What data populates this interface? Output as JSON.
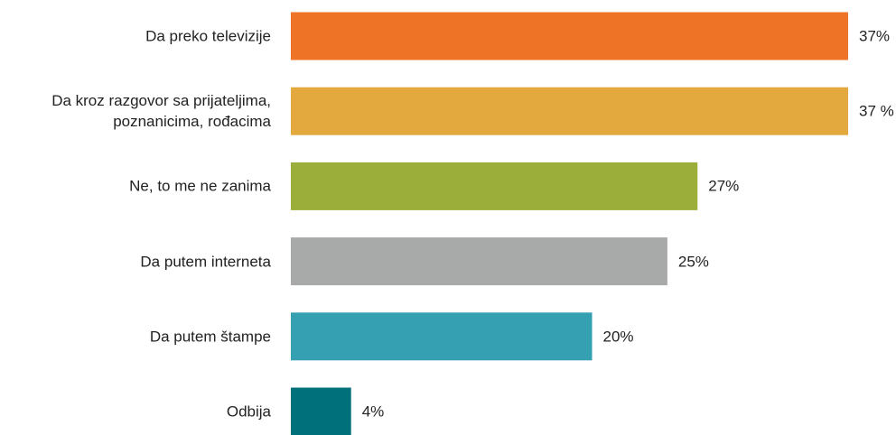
{
  "chart_data": {
    "type": "bar",
    "orientation": "horizontal",
    "categories": [
      "Da preko televizije",
      "Da kroz razgovor sa prijateljima,\npoznanicima, rođacima",
      "Ne, to me ne zanima",
      "Da putem interneta",
      "Da putem štampe",
      "Odbija"
    ],
    "values": [
      37,
      37,
      27,
      25,
      20,
      4
    ],
    "value_labels": [
      "37%",
      "37 %",
      "27%",
      "25%",
      "20%",
      "4%"
    ],
    "colors": [
      "#ee7326",
      "#e3a93f",
      "#9bae3a",
      "#a7aaa9",
      "#35a0b2",
      "#00717a"
    ]
  }
}
